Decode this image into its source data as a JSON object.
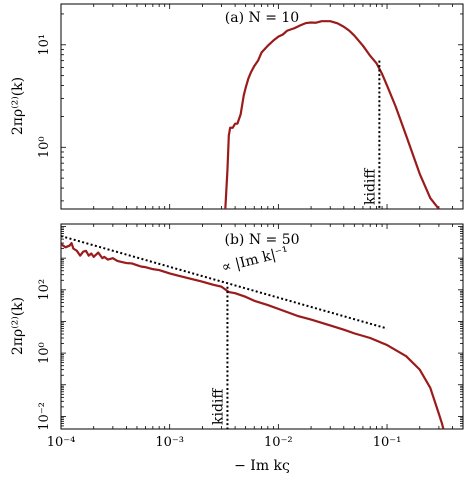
{
  "chart_data": [
    {
      "type": "line",
      "title": "(a) N = 10",
      "ylabel": "2πρ⁽²⁾(k)",
      "yscale": "log",
      "xscale": "log",
      "xlim": [
        0.0001,
        0.5
      ],
      "ylim": [
        0.25,
        25
      ],
      "yticks": [
        {
          "value": 1,
          "label": "10⁰"
        },
        {
          "value": 10,
          "label": "10¹"
        }
      ],
      "series": [
        {
          "x": [
            0.00325,
            0.0034,
            0.0035,
            0.0036,
            0.0038,
            0.004,
            0.0042,
            0.0045,
            0.0048,
            0.005,
            0.0053,
            0.0056,
            0.006,
            0.0065,
            0.007,
            0.0075,
            0.008,
            0.009,
            0.01,
            0.011,
            0.012,
            0.014,
            0.016,
            0.018,
            0.02,
            0.022,
            0.025,
            0.03,
            0.035,
            0.04,
            0.045,
            0.05,
            0.06,
            0.07,
            0.08,
            0.09,
            0.1,
            0.12,
            0.15,
            0.2,
            0.25,
            0.3
          ],
          "y": [
            0.25,
            0.6,
            1.3,
            1.55,
            1.55,
            1.7,
            1.7,
            2.1,
            3.2,
            3.8,
            4.7,
            5.4,
            6.2,
            7.0,
            8.4,
            9.1,
            9.8,
            11.0,
            12.0,
            12.6,
            13.7,
            14.5,
            15.5,
            16.3,
            16.5,
            16.4,
            17.0,
            17.0,
            16.2,
            15.0,
            13.7,
            12.3,
            9.8,
            7.8,
            6.6,
            5.2,
            4.0,
            2.5,
            1.3,
            0.55,
            0.32,
            0.25
          ]
        }
      ],
      "markers": [
        {
          "label": "k_idiff",
          "x": 0.085,
          "y": 7.0
        }
      ],
      "legend": "none"
    },
    {
      "type": "line",
      "title": "(b) N = 50",
      "ylabel": "2πρ⁽²⁾(k)",
      "xlabel": "− Im kς",
      "yscale": "log",
      "xscale": "log",
      "xlim": [
        0.0001,
        0.5
      ],
      "ylim": [
        0.004,
        12000
      ],
      "yticks": [
        {
          "value": 0.01,
          "label": "10⁻²"
        },
        {
          "value": 1,
          "label": "10⁰"
        },
        {
          "value": 100,
          "label": "10²"
        }
      ],
      "xticks": [
        {
          "value": 0.0001,
          "label": "10⁻⁴"
        },
        {
          "value": 0.001,
          "label": "10⁻³"
        },
        {
          "value": 0.01,
          "label": "10⁻²"
        },
        {
          "value": 0.1,
          "label": "10⁻¹"
        }
      ],
      "series": [
        {
          "x": [
            0.0001,
            0.00011,
            0.00012,
            0.000125,
            0.00013,
            0.00014,
            0.00015,
            0.00016,
            0.00017,
            0.00018,
            0.00019,
            0.0002,
            0.00022,
            0.00024,
            0.00025,
            0.00027,
            0.0003,
            0.00033,
            0.00036,
            0.0004,
            0.00045,
            0.0005,
            0.00055,
            0.0006,
            0.0007,
            0.0008,
            0.001,
            0.0012,
            0.0015,
            0.002,
            0.0025,
            0.003,
            0.0035,
            0.004,
            0.005,
            0.006,
            0.008,
            0.01,
            0.015,
            0.02,
            0.03,
            0.04,
            0.05,
            0.07,
            0.1,
            0.15,
            0.2,
            0.25,
            0.3,
            0.32,
            0.33
          ],
          "y": [
            2800,
            2200,
            2500,
            3000,
            2000,
            1700,
            1200,
            1600,
            1700,
            1200,
            1400,
            1100,
            1500,
            1000,
            1100,
            900,
            1000,
            820,
            760,
            700,
            680,
            600,
            540,
            520,
            450,
            420,
            330,
            280,
            230,
            180,
            145,
            125,
            85,
            78,
            60,
            45,
            33,
            25,
            15,
            11.5,
            7.5,
            5.5,
            4.2,
            3.0,
            1.8,
            0.8,
            0.3,
            0.08,
            0.012,
            0.006,
            0.004
          ]
        }
      ],
      "reference_line": {
        "label": "∝ |Im k|⁻¹",
        "x": [
          0.0001,
          0.1
        ],
        "y": [
          5000,
          6
        ]
      },
      "markers": [
        {
          "label": "k_idiff",
          "x": 0.0034,
          "y": 125
        }
      ],
      "legend": "none"
    }
  ]
}
